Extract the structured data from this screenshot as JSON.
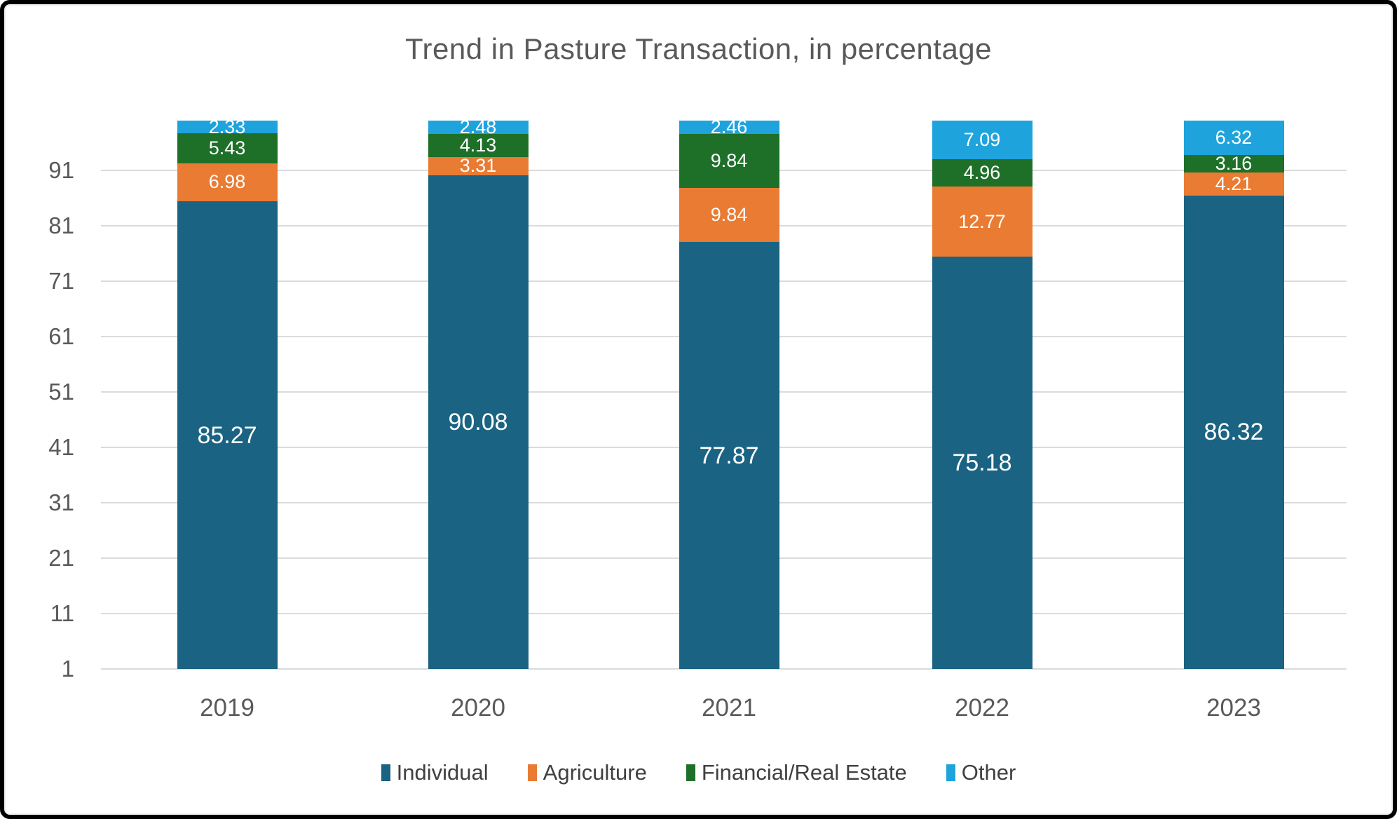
{
  "chart_data": {
    "type": "bar",
    "stacked": true,
    "title": "Trend in Pasture Transaction, in percentage",
    "xlabel": "",
    "ylabel": "",
    "categories": [
      "2019",
      "2020",
      "2021",
      "2022",
      "2023"
    ],
    "series": [
      {
        "name": "Individual",
        "color": "#1A6382",
        "values": [
          85.27,
          90.08,
          77.87,
          75.18,
          86.32
        ]
      },
      {
        "name": "Agriculture",
        "color": "#E97B33",
        "values": [
          6.98,
          3.31,
          9.84,
          12.77,
          4.21
        ]
      },
      {
        "name": "Financial/Real Estate",
        "color": "#1E7029",
        "values": [
          5.43,
          4.13,
          9.84,
          4.96,
          3.16
        ]
      },
      {
        "name": "Other",
        "color": "#1FA3DC",
        "values": [
          2.33,
          2.48,
          2.46,
          7.09,
          6.32
        ]
      }
    ],
    "yticks": [
      1,
      11,
      21,
      31,
      41,
      51,
      61,
      71,
      81,
      91
    ],
    "ylim": [
      1,
      101
    ],
    "grid": true,
    "legend_position": "bottom"
  },
  "colors": {
    "background": "#FFFFFF",
    "frame_border": "#000000",
    "gridline": "#DBDBDB",
    "axis_text": "#595959",
    "title_text": "#595959",
    "legend_text": "#404040",
    "value_label_text": "#FFFFFF"
  }
}
